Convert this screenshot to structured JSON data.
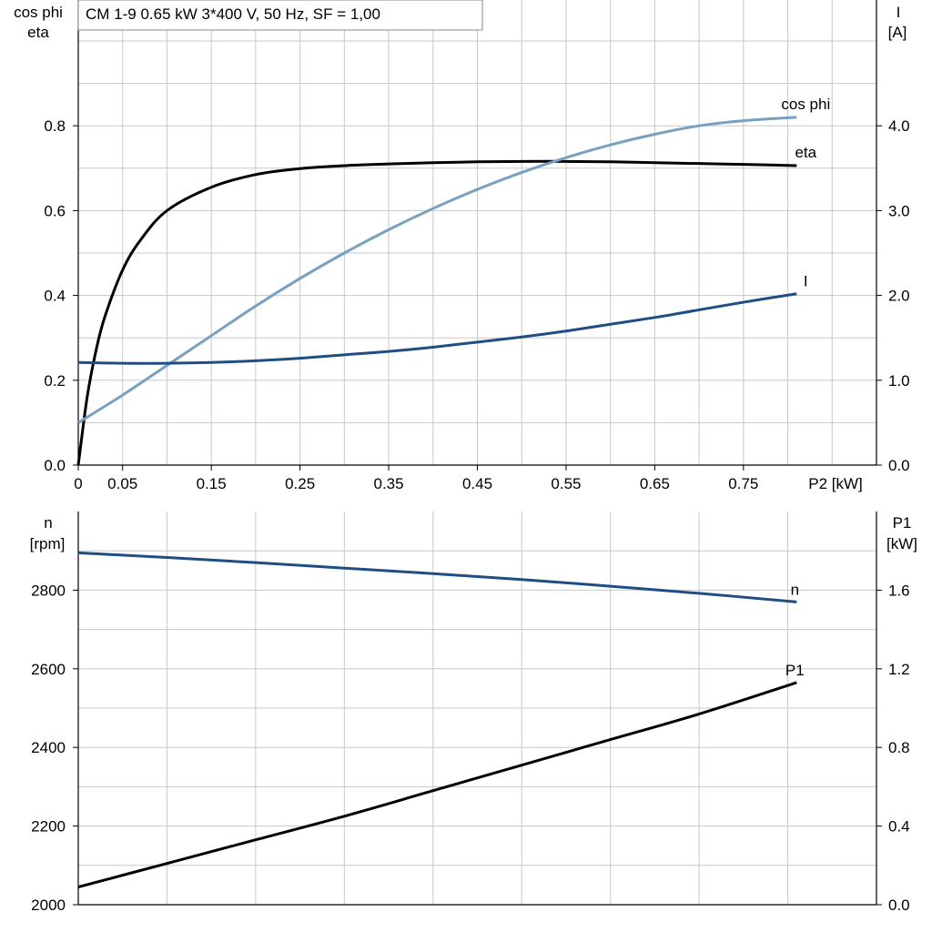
{
  "chart_data": [
    {
      "type": "line",
      "title": "CM 1-9   0.65 kW   3*400 V, 50 Hz, SF = 1,00",
      "xlabel": "P2 [kW]",
      "ylabel_left": [
        "cos phi",
        "eta"
      ],
      "ylabel_right": [
        "I",
        "[A]"
      ],
      "xlim": [
        0,
        0.9
      ],
      "ylim_left": [
        0,
        1.0
      ],
      "ylim_right": [
        0,
        5.0
      ],
      "x_ticks": [
        "0",
        "0.05",
        "0.15",
        "0.25",
        "0.35",
        "0.45",
        "0.55",
        "0.65",
        "0.75"
      ],
      "left_ticks": [
        "0.0",
        "0.2",
        "0.4",
        "0.6",
        "0.8"
      ],
      "right_ticks": [
        "0.0",
        "1.0",
        "2.0",
        "3.0",
        "4.0"
      ],
      "grid": true,
      "series": [
        {
          "name": "eta",
          "axis": "left",
          "color": "#000000",
          "x": [
            0,
            0.01,
            0.02,
            0.03,
            0.05,
            0.07,
            0.1,
            0.15,
            0.2,
            0.25,
            0.3,
            0.35,
            0.4,
            0.45,
            0.5,
            0.55,
            0.6,
            0.65,
            0.7,
            0.75,
            0.81
          ],
          "y": [
            0,
            0.16,
            0.27,
            0.35,
            0.46,
            0.53,
            0.6,
            0.655,
            0.685,
            0.699,
            0.706,
            0.71,
            0.713,
            0.715,
            0.716,
            0.716,
            0.715,
            0.713,
            0.711,
            0.709,
            0.706
          ]
        },
        {
          "name": "cos phi",
          "axis": "left",
          "color": "#7aa0c0",
          "x": [
            0,
            0.05,
            0.1,
            0.15,
            0.2,
            0.25,
            0.3,
            0.35,
            0.4,
            0.45,
            0.5,
            0.55,
            0.6,
            0.65,
            0.7,
            0.75,
            0.81
          ],
          "y": [
            0.1,
            0.165,
            0.235,
            0.305,
            0.375,
            0.44,
            0.5,
            0.555,
            0.605,
            0.65,
            0.69,
            0.725,
            0.755,
            0.78,
            0.8,
            0.812,
            0.82
          ]
        },
        {
          "name": "I",
          "axis": "right",
          "color": "#1f4e82",
          "x": [
            0,
            0.05,
            0.1,
            0.15,
            0.2,
            0.25,
            0.3,
            0.35,
            0.4,
            0.45,
            0.5,
            0.55,
            0.6,
            0.65,
            0.7,
            0.75,
            0.81
          ],
          "y": [
            1.21,
            1.2,
            1.2,
            1.21,
            1.23,
            1.26,
            1.3,
            1.34,
            1.39,
            1.45,
            1.51,
            1.58,
            1.66,
            1.74,
            1.83,
            1.92,
            2.02
          ]
        }
      ]
    },
    {
      "type": "line",
      "xlim": [
        0,
        0.9
      ],
      "ylabel_left": [
        "n",
        "[rpm]"
      ],
      "ylabel_right": [
        "P1",
        "[kW]"
      ],
      "ylim_left": [
        2000,
        3000
      ],
      "ylim_right": [
        0,
        2.0
      ],
      "left_ticks": [
        "2000",
        "2200",
        "2400",
        "2600",
        "2800"
      ],
      "right_ticks": [
        "0.0",
        "0.4",
        "0.8",
        "1.2",
        "1.6"
      ],
      "grid": true,
      "series": [
        {
          "name": "n",
          "axis": "left",
          "color": "#1f4e82",
          "x": [
            0,
            0.1,
            0.2,
            0.3,
            0.4,
            0.5,
            0.6,
            0.7,
            0.81
          ],
          "y": [
            2895,
            2883,
            2870,
            2856,
            2842,
            2827,
            2810,
            2792,
            2770
          ]
        },
        {
          "name": "P1",
          "axis": "right",
          "color": "#000000",
          "x": [
            0,
            0.1,
            0.2,
            0.3,
            0.4,
            0.5,
            0.6,
            0.7,
            0.81
          ],
          "y": [
            0.09,
            0.21,
            0.33,
            0.45,
            0.58,
            0.71,
            0.84,
            0.97,
            1.13
          ]
        }
      ]
    }
  ]
}
